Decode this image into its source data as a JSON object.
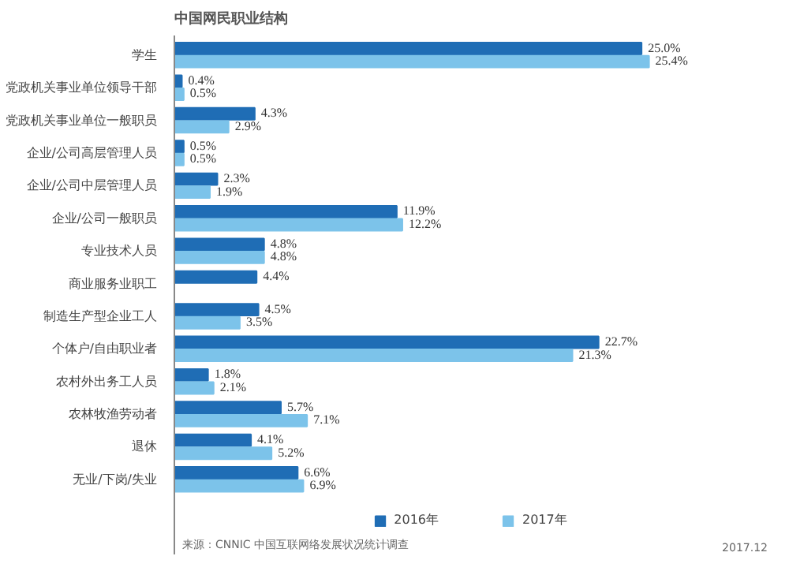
{
  "chart_data": {
    "type": "bar",
    "orientation": "horizontal",
    "title": "中国网民职业结构",
    "categories": [
      "学生",
      "党政机关事业单位领导干部",
      "党政机关事业单位一般职员",
      "企业/公司高层管理人员",
      "企业/公司中层管理人员",
      "企业/公司一般职员",
      "专业技术人员",
      "商业服务业职工",
      "制造生产型企业工人",
      "个体户/自由职业者",
      "农村外出务工人员",
      "农林牧渔劳动者",
      "退休",
      "无业/下岗/失业"
    ],
    "series": [
      {
        "name": "2016年",
        "color": "#1f6db5",
        "values": [
          25.0,
          0.4,
          4.3,
          0.5,
          2.3,
          11.9,
          4.8,
          4.4,
          4.5,
          22.7,
          1.8,
          5.7,
          4.1,
          6.6
        ],
        "value_labels": [
          "25.0%",
          "0.4%",
          "4.3%",
          "0.5%",
          "2.3%",
          "11.9%",
          "4.8%",
          "4.4%",
          "4.5%",
          "22.7%",
          "1.8%",
          "5.7%",
          "4.1%",
          "6.6%"
        ]
      },
      {
        "name": "2017年",
        "color": "#7cc3ea",
        "values": [
          25.4,
          0.5,
          2.9,
          0.5,
          1.9,
          12.2,
          4.8,
          null,
          3.5,
          21.3,
          2.1,
          7.1,
          5.2,
          6.9
        ],
        "value_labels": [
          "25.4%",
          "0.5%",
          "2.9%",
          "0.5%",
          "1.9%",
          "12.2%",
          "4.8%",
          null,
          "3.5%",
          "21.3%",
          "2.1%",
          "7.1%",
          "5.2%",
          "6.9%"
        ]
      }
    ],
    "legend": "bottom",
    "grid": false,
    "annotations": [
      "来源：CNNIC 中国互联网络发展状况统计调查",
      "2017.12"
    ]
  }
}
